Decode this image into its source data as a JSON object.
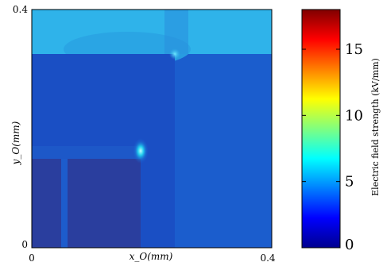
{
  "chart_data": {
    "type": "heatmap",
    "xlabel": "x_O(mm)",
    "ylabel": "y_O(mm)",
    "xlim": [
      0,
      0.4
    ],
    "ylim": [
      0,
      0.4
    ],
    "x_ticks": [
      "0",
      "0.4"
    ],
    "y_ticks": [
      "0",
      "0.4"
    ],
    "colorbar": {
      "label": "Electric field strength (kV/mm)",
      "range": [
        0,
        18
      ],
      "ticks": [
        "0",
        "5",
        "10",
        "15"
      ],
      "tick_values": [
        0,
        5,
        10,
        15
      ],
      "colormap": "jet"
    },
    "regions": [
      {
        "shape": "rect",
        "x": [
          0,
          0.4
        ],
        "y": [
          0,
          0.4
        ],
        "value": 4.0
      },
      {
        "shape": "rect",
        "x": [
          0,
          0.4
        ],
        "y": [
          0.325,
          0.4
        ],
        "value": 6.0
      },
      {
        "shape": "rect",
        "x": [
          0,
          0.221
        ],
        "y": [
          0,
          0.325
        ],
        "value": 3.0
      },
      {
        "shape": "rect",
        "x": [
          0,
          0.177
        ],
        "y": [
          0,
          0.148
        ],
        "value": 2.2
      },
      {
        "shape": "rect",
        "x": [
          0,
          0.177
        ],
        "y": [
          0,
          0.133
        ],
        "value": 1.0
      },
      {
        "shape": "rect",
        "x": [
          0.049,
          0.059
        ],
        "y": [
          0,
          0.133
        ],
        "value": 2.0
      },
      {
        "shape": "ellipse",
        "cx": 0.177,
        "cy": 0.148,
        "rx": 0.012,
        "ry": 0.018,
        "value": 8.0
      },
      {
        "shape": "ellipse",
        "cx": 0.221,
        "cy": 0.325,
        "rx": 0.008,
        "ry": 0.008,
        "value": 6.5
      }
    ]
  }
}
